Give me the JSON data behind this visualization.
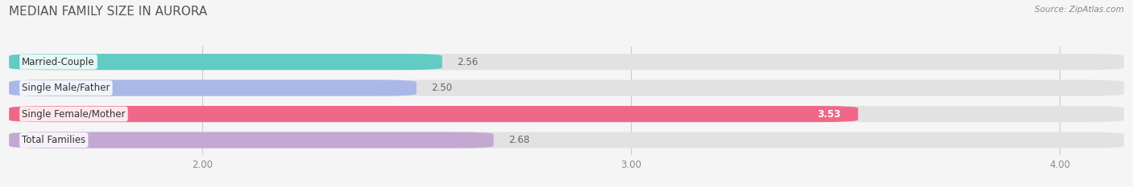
{
  "title": "MEDIAN FAMILY SIZE IN AURORA",
  "source": "Source: ZipAtlas.com",
  "categories": [
    "Married-Couple",
    "Single Male/Father",
    "Single Female/Mother",
    "Total Families"
  ],
  "values": [
    2.56,
    2.5,
    3.53,
    2.68
  ],
  "bar_colors": [
    "#62cbc4",
    "#aab8e8",
    "#f06888",
    "#c4a8d4"
  ],
  "background_color": "#f5f5f5",
  "bar_bg_color": "#e2e2e2",
  "xlim": [
    1.55,
    4.15
  ],
  "xstart": 1.55,
  "xticks": [
    2.0,
    3.0,
    4.0
  ],
  "xtick_labels": [
    "2.00",
    "3.00",
    "4.00"
  ],
  "bar_height": 0.62,
  "title_fontsize": 11,
  "label_fontsize": 8.5,
  "value_fontsize": 8.5
}
